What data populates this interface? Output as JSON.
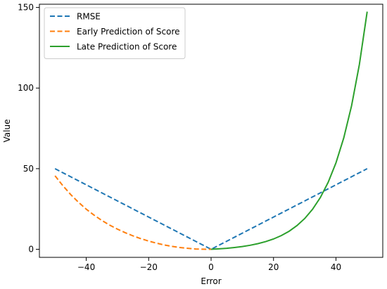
{
  "chart_data": {
    "type": "line",
    "title": "",
    "xlabel": "Error",
    "ylabel": "Value",
    "xlim": [
      -55,
      55
    ],
    "ylim": [
      -5,
      152
    ],
    "xticks": [
      -40,
      -20,
      0,
      20,
      40
    ],
    "xtick_labels": [
      "−40",
      "−20",
      "0",
      "20",
      "40"
    ],
    "yticks": [
      0,
      50,
      100,
      150
    ],
    "ytick_labels": [
      "0",
      "50",
      "100",
      "150"
    ],
    "grid": false,
    "legend_position": "top-left",
    "series": [
      {
        "name": "RMSE",
        "color": "#1f77b4",
        "dashed": true,
        "points": [
          [
            -50,
            50
          ],
          [
            0,
            0
          ],
          [
            50,
            50
          ]
        ]
      },
      {
        "name": "Early Prediction of Score",
        "color": "#ff7f0e",
        "dashed": true,
        "points": [
          [
            -50,
            45.6
          ],
          [
            -47.5,
            39.5
          ],
          [
            -45,
            34.0
          ],
          [
            -42.5,
            29.2
          ],
          [
            -40,
            24.9
          ],
          [
            -37.5,
            21.2
          ],
          [
            -35,
            17.9
          ],
          [
            -32.5,
            15.0
          ],
          [
            -30,
            12.5
          ],
          [
            -27.5,
            10.3
          ],
          [
            -25,
            8.3
          ],
          [
            -22.5,
            6.6
          ],
          [
            -20,
            5.1
          ],
          [
            -17.5,
            3.8
          ],
          [
            -15,
            2.7
          ],
          [
            -12.5,
            1.8
          ],
          [
            -10,
            1.1
          ],
          [
            -7.5,
            0.6
          ],
          [
            -5,
            0.2
          ],
          [
            -2.5,
            0.05
          ],
          [
            0,
            0
          ]
        ]
      },
      {
        "name": "Late Prediction of Score",
        "color": "#2ca02c",
        "dashed": false,
        "points": [
          [
            0,
            0
          ],
          [
            2.5,
            0.3
          ],
          [
            5,
            0.6
          ],
          [
            7.5,
            1.1
          ],
          [
            10,
            1.7
          ],
          [
            12.5,
            2.5
          ],
          [
            15,
            3.5
          ],
          [
            17.5,
            4.8
          ],
          [
            20,
            6.4
          ],
          [
            22.5,
            8.5
          ],
          [
            25,
            11.2
          ],
          [
            27.5,
            14.7
          ],
          [
            30,
            19.1
          ],
          [
            32.5,
            24.8
          ],
          [
            35,
            32.1
          ],
          [
            37.5,
            41.5
          ],
          [
            40,
            53.6
          ],
          [
            42.5,
            69.1
          ],
          [
            45,
            89.0
          ],
          [
            47.5,
            114.6
          ],
          [
            50,
            147.4
          ]
        ]
      }
    ]
  }
}
